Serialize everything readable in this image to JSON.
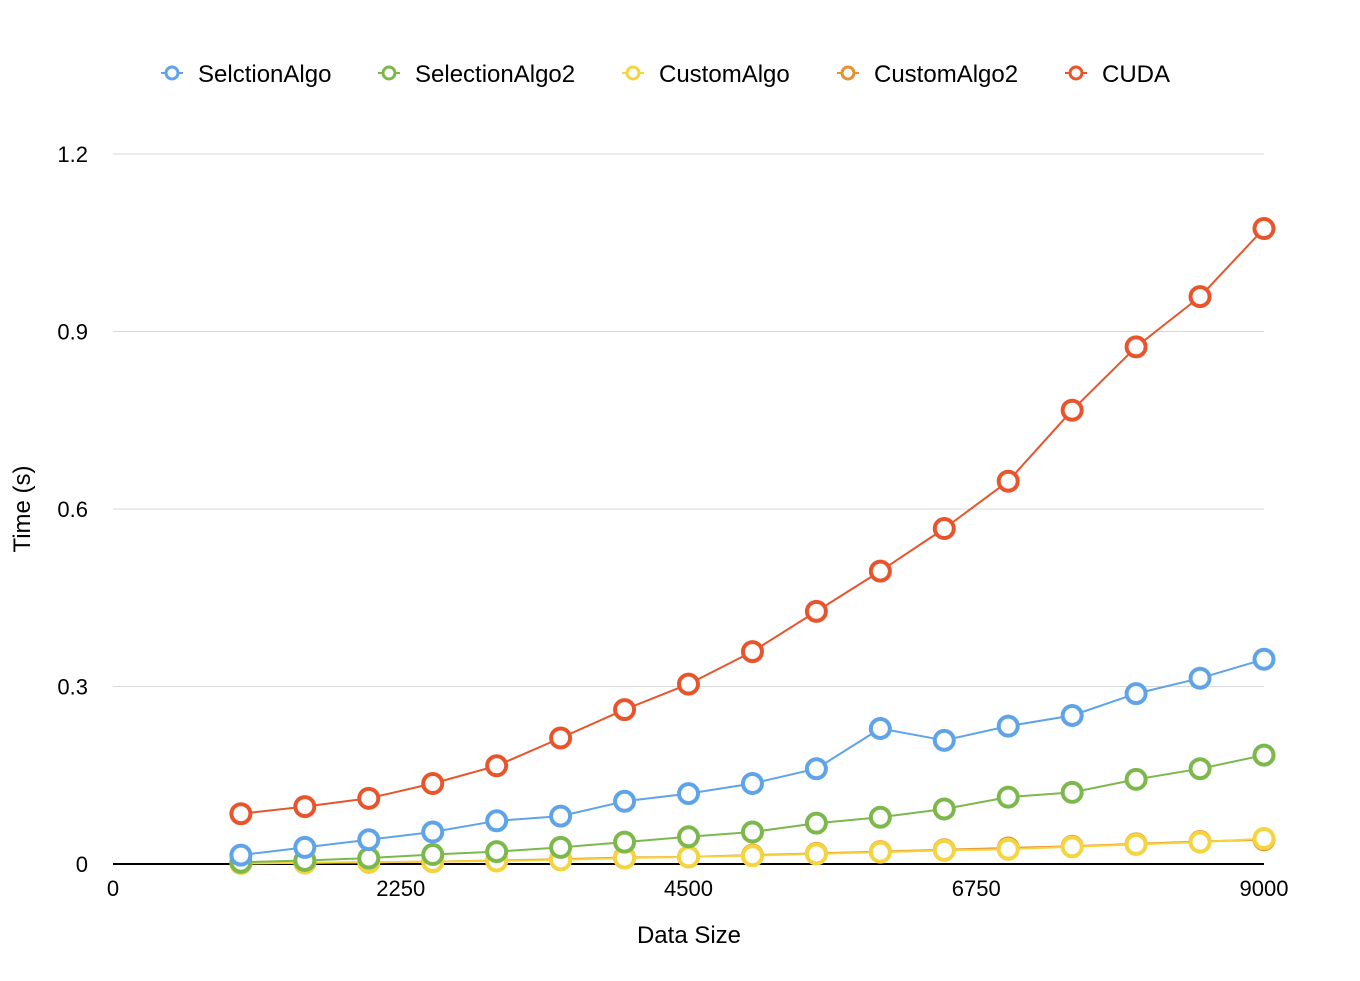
{
  "chart_data": {
    "type": "line",
    "title": "",
    "xlabel": "Data Size",
    "ylabel": "Time (s)",
    "xlim": [
      0,
      9000
    ],
    "ylim": [
      0,
      1.2
    ],
    "x_ticks": [
      "0",
      "2250",
      "4500",
      "6750",
      "9000"
    ],
    "y_ticks": [
      "0",
      "0.3",
      "0.6",
      "0.9",
      "1.2"
    ],
    "grid": "horizontal",
    "legend_position": "top",
    "x": [
      1000,
      1500,
      2000,
      2500,
      3000,
      3500,
      4000,
      4500,
      5000,
      5500,
      6000,
      6500,
      7000,
      7500,
      8000,
      8500,
      9000
    ],
    "series": [
      {
        "name": "SelctionAlgo",
        "color": "#5fa3e8",
        "values": [
          0.015,
          0.028,
          0.041,
          0.054,
          0.073,
          0.081,
          0.106,
          0.119,
          0.136,
          0.161,
          0.229,
          0.209,
          0.233,
          0.251,
          0.288,
          0.314,
          0.346
        ]
      },
      {
        "name": "SelectionAlgo2",
        "color": "#7db84d",
        "values": [
          0.003,
          0.006,
          0.01,
          0.016,
          0.021,
          0.028,
          0.037,
          0.046,
          0.054,
          0.069,
          0.079,
          0.093,
          0.113,
          0.121,
          0.143,
          0.161,
          0.184
        ]
      },
      {
        "name": "CustomAlgo",
        "color": "#f5d53f",
        "values": [
          0.001,
          0.002,
          0.003,
          0.004,
          0.005,
          0.007,
          0.01,
          0.012,
          0.014,
          0.017,
          0.02,
          0.023,
          0.025,
          0.029,
          0.033,
          0.037,
          0.043
        ]
      },
      {
        "name": "CustomAlgo2",
        "color": "#e8912f",
        "values": [
          0.001,
          0.002,
          0.003,
          0.004,
          0.006,
          0.008,
          0.011,
          0.012,
          0.015,
          0.018,
          0.021,
          0.024,
          0.027,
          0.03,
          0.034,
          0.038,
          0.041
        ]
      },
      {
        "name": "CUDA",
        "color": "#e8552d",
        "values": [
          0.085,
          0.097,
          0.111,
          0.136,
          0.166,
          0.213,
          0.261,
          0.304,
          0.359,
          0.427,
          0.495,
          0.567,
          0.647,
          0.767,
          0.874,
          0.959,
          1.074
        ]
      }
    ]
  }
}
